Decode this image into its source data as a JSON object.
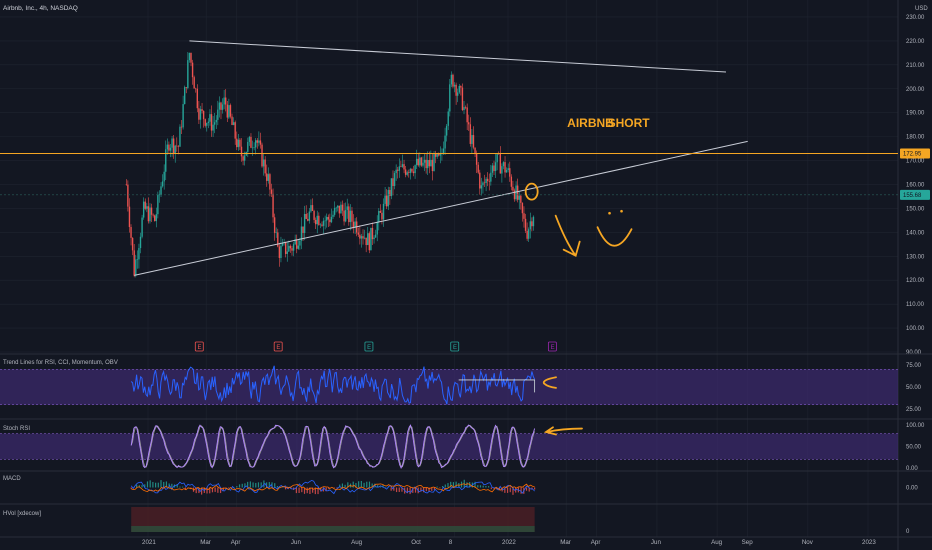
{
  "header": {
    "symbol_line": "Airbnb, Inc., 4h, NASDAQ",
    "currency": "USD"
  },
  "colors": {
    "background": "#131722",
    "grid": "#1f2430",
    "axis_text": "#b2b5be",
    "up": "#26a69a",
    "down": "#ef5350",
    "annotation": "#f5a623",
    "trendline": "#c8ccd6",
    "horizontal_line": "#f5a623",
    "rsi_line": "#2962ff",
    "band_fill": "#3b2a6b",
    "stoch_k": "#b388ff",
    "stoch_d": "#9e9e9e",
    "macd": "#2962ff",
    "signal": "#ff6d00"
  },
  "chart_data": [
    {
      "type": "candlestick",
      "title": "Airbnb, Inc., 4h, NASDAQ",
      "ylim": [
        90,
        235
      ],
      "y_ticks": [
        90,
        100,
        110,
        120,
        130,
        140,
        150,
        160,
        170,
        180,
        190,
        200,
        210,
        220,
        230
      ],
      "price_labels": [
        {
          "text": "172.95",
          "value": 172.95,
          "color": "#f5a623"
        },
        {
          "text": "155.68",
          "value": 155.68,
          "color": "#26a69a"
        }
      ],
      "x_ticks": [
        "2021",
        "Mar",
        "Apr",
        "Jun",
        "Aug",
        "Oct",
        "8",
        "2022",
        "Mar",
        "Apr",
        "Jun",
        "Aug",
        "Sep",
        "Nov",
        "2023"
      ],
      "x_tick_dates": [
        "2021-01-01",
        "2021-03-01",
        "2021-04-01",
        "2021-06-01",
        "2021-08-01",
        "2021-10-01",
        "2021-11-08",
        "2022-01-01",
        "2022-03-01",
        "2022-04-01",
        "2022-06-01",
        "2022-08-01",
        "2022-09-01",
        "2022-11-01",
        "2023-01-01"
      ],
      "price_path": [
        [
          "2020-12-10",
          160
        ],
        [
          "2020-12-18",
          124
        ],
        [
          "2020-12-28",
          150
        ],
        [
          "2021-01-08",
          145
        ],
        [
          "2021-01-22",
          178
        ],
        [
          "2021-02-01",
          176
        ],
        [
          "2021-02-12",
          215
        ],
        [
          "2021-02-22",
          190
        ],
        [
          "2021-03-08",
          185
        ],
        [
          "2021-03-20",
          195
        ],
        [
          "2021-04-05",
          172
        ],
        [
          "2021-04-20",
          180
        ],
        [
          "2021-05-03",
          162
        ],
        [
          "2021-05-13",
          132
        ],
        [
          "2021-05-28",
          134
        ],
        [
          "2021-06-14",
          148
        ],
        [
          "2021-07-01",
          145
        ],
        [
          "2021-07-15",
          150
        ],
        [
          "2021-08-01",
          143
        ],
        [
          "2021-08-13",
          136
        ],
        [
          "2021-08-28",
          150
        ],
        [
          "2021-09-10",
          165
        ],
        [
          "2021-09-25",
          168
        ],
        [
          "2021-10-10",
          168
        ],
        [
          "2021-10-25",
          170
        ],
        [
          "2021-11-05",
          205
        ],
        [
          "2021-11-15",
          196
        ],
        [
          "2021-11-25",
          178
        ],
        [
          "2021-12-05",
          158
        ],
        [
          "2021-12-20",
          170
        ],
        [
          "2021-12-31",
          166
        ],
        [
          "2022-01-10",
          155
        ],
        [
          "2022-01-20",
          140
        ],
        [
          "2022-01-28",
          150
        ]
      ],
      "drawings": {
        "resistance_line": {
          "from": [
            "2021-02-12",
            220
          ],
          "to": [
            "2022-08-10",
            207
          ]
        },
        "support_line": {
          "from": [
            "2020-12-18",
            122
          ],
          "to": [
            "2022-09-01",
            178
          ]
        },
        "horizontal_line": {
          "value": 172.95
        }
      },
      "annotations": [
        {
          "text": "AIRBNB",
          "date": "2022-03-02",
          "value": 184
        },
        {
          "text": "SHORT",
          "date": "2022-04-12",
          "value": 184
        }
      ],
      "event_markers": [
        {
          "text": "E",
          "date": "2021-02-22",
          "color": "#ef5350"
        },
        {
          "text": "E",
          "date": "2021-05-13",
          "color": "#ef5350"
        },
        {
          "text": "E",
          "date": "2021-08-13",
          "color": "#26a69a"
        },
        {
          "text": "E",
          "date": "2021-11-08",
          "color": "#26a69a"
        },
        {
          "text": "E",
          "date": "2022-02-15",
          "color": "#9c27b0"
        }
      ]
    },
    {
      "type": "line",
      "title": "Trend Lines for RSI, CCI, Momentum, OBV",
      "ylim": [
        15,
        85
      ],
      "y_ticks": [
        "75.00",
        "50.00",
        "25.00"
      ],
      "y_tick_values": [
        75,
        50,
        25
      ],
      "band": [
        30,
        70
      ]
    },
    {
      "type": "line",
      "title": "Stoch RSI",
      "ylim": [
        -5,
        112
      ],
      "y_ticks": [
        "100.00",
        "50.00",
        "0.00"
      ],
      "y_tick_values": [
        100,
        50,
        0
      ],
      "band": [
        20,
        80
      ]
    },
    {
      "type": "line",
      "title": "MACD",
      "y_ticks": [
        "0.00"
      ],
      "y_tick_values": [
        0
      ]
    },
    {
      "type": "area",
      "title": "HVol [xdecow]",
      "y_ticks": [
        "0"
      ],
      "y_tick_values": [
        0
      ]
    }
  ]
}
